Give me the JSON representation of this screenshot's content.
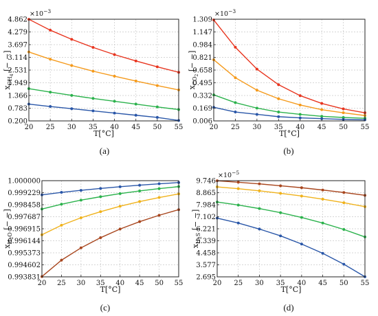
{
  "chart_data": [
    {
      "type": "line",
      "caption": "(a)",
      "xlabel": "T[°C]",
      "ylabel": "x_CH4 [− −]",
      "ylabel_main": "x",
      "ylabel_sub": "CH",
      "ylabel_subsub": "4",
      "ylabel_tail": "[− −]",
      "exponent_base": "×10",
      "exponent_power": "−3",
      "xlim": [
        20,
        55
      ],
      "ylim": [
        0.2,
        4.862
      ],
      "xticks": [
        "20",
        "25",
        "30",
        "35",
        "40",
        "45",
        "50",
        "55"
      ],
      "yticks": [
        "0.200",
        "0.783",
        "1.366",
        "1.949",
        "2.531",
        "3.114",
        "3.697",
        "4.279",
        "4.862"
      ],
      "x": [
        20,
        25,
        30,
        35,
        40,
        45,
        50,
        55
      ],
      "series": [
        {
          "color": "#e8351f",
          "values": [
            4.86,
            4.36,
            3.94,
            3.57,
            3.24,
            2.95,
            2.68,
            2.43
          ]
        },
        {
          "color": "#f59a1b",
          "values": [
            3.36,
            3.03,
            2.74,
            2.48,
            2.25,
            2.03,
            1.82,
            1.62
          ]
        },
        {
          "color": "#2bb24c",
          "values": [
            1.68,
            1.52,
            1.37,
            1.23,
            1.1,
            0.97,
            0.84,
            0.72
          ]
        },
        {
          "color": "#2956a8",
          "values": [
            0.97,
            0.86,
            0.76,
            0.66,
            0.56,
            0.46,
            0.36,
            0.22
          ]
        }
      ]
    },
    {
      "type": "line",
      "caption": "(b)",
      "xlabel": "T[°C]",
      "ylabel": "x_CO2 [− −]",
      "ylabel_main": "x",
      "ylabel_sub": "CO",
      "ylabel_subsub": "2",
      "ylabel_tail": "[− −]",
      "exponent_base": "×10",
      "exponent_power": "−3",
      "xlim": [
        20,
        55
      ],
      "ylim": [
        0.006,
        1.309
      ],
      "xticks": [
        "20",
        "25",
        "30",
        "35",
        "40",
        "45",
        "50",
        "55"
      ],
      "yticks": [
        "0.006",
        "0.169",
        "0.332",
        "0.495",
        "0.658",
        "0.821",
        "0.984",
        "1.147",
        "1.309"
      ],
      "x": [
        20,
        25,
        30,
        35,
        40,
        45,
        50,
        55
      ],
      "series": [
        {
          "color": "#e8351f",
          "values": [
            1.3,
            0.95,
            0.67,
            0.47,
            0.33,
            0.23,
            0.16,
            0.11
          ]
        },
        {
          "color": "#f59a1b",
          "values": [
            0.79,
            0.56,
            0.4,
            0.29,
            0.21,
            0.15,
            0.11,
            0.075
          ]
        },
        {
          "color": "#2bb24c",
          "values": [
            0.34,
            0.24,
            0.17,
            0.12,
            0.09,
            0.065,
            0.05,
            0.04
          ]
        },
        {
          "color": "#2956a8",
          "values": [
            0.18,
            0.12,
            0.09,
            0.06,
            0.045,
            0.035,
            0.025,
            0.02
          ]
        }
      ]
    },
    {
      "type": "line",
      "caption": "(c)",
      "xlabel": "T[°C]",
      "ylabel": "x_H2O [− −]",
      "ylabel_main": "x",
      "ylabel_sub": "H",
      "ylabel_subsub": "2",
      "ylabel_sub2": "O",
      "ylabel_tail": "[− −]",
      "xlim": [
        20,
        55
      ],
      "ylim": [
        0.993831,
        1.0
      ],
      "xticks": [
        "20",
        "25",
        "30",
        "35",
        "40",
        "45",
        "50",
        "55"
      ],
      "yticks": [
        "0.993831",
        "0.994602",
        "0.995373",
        "0.996144",
        "0.996915",
        "0.997687",
        "0.998458",
        "0.999229",
        "1.000000"
      ],
      "x": [
        20,
        25,
        30,
        35,
        40,
        45,
        50,
        55
      ],
      "series": [
        {
          "color": "#2956a8",
          "values": [
            0.99909,
            0.99925,
            0.99938,
            0.9995,
            0.99961,
            0.99971,
            0.9998,
            0.99988
          ]
        },
        {
          "color": "#2bb24c",
          "values": [
            0.99818,
            0.99849,
            0.99875,
            0.99897,
            0.99917,
            0.99934,
            0.99949,
            0.99962
          ]
        },
        {
          "color": "#f0b21b",
          "values": [
            0.99653,
            0.99714,
            0.99762,
            0.99801,
            0.99836,
            0.99866,
            0.99892,
            0.99915
          ]
        },
        {
          "color": "#a8461e",
          "values": [
            0.99385,
            0.9949,
            0.99569,
            0.99634,
            0.9969,
            0.99737,
            0.99778,
            0.99814
          ]
        }
      ]
    },
    {
      "type": "line",
      "caption": "(d)",
      "xlabel": "T[°C]",
      "ylabel": "x_H2S [− −]",
      "ylabel_main": "x",
      "ylabel_sub": "H",
      "ylabel_subsub": "2",
      "ylabel_sub2": "S",
      "ylabel_tail": "[− −]",
      "exponent_base": "×10",
      "exponent_power": "−5",
      "xlim": [
        20,
        55
      ],
      "ylim": [
        2.695,
        9.746
      ],
      "xticks": [
        "20",
        "25",
        "30",
        "35",
        "40",
        "45",
        "50",
        "55"
      ],
      "yticks": [
        "2.695",
        "3.577",
        "4.458",
        "5.339",
        "6.221",
        "7.102",
        "7.984",
        "8.865",
        "9.746"
      ],
      "x": [
        20,
        25,
        30,
        35,
        40,
        45,
        50,
        55
      ],
      "series": [
        {
          "color": "#a8461e",
          "values": [
            9.74,
            9.63,
            9.51,
            9.37,
            9.23,
            9.06,
            8.88,
            8.67
          ]
        },
        {
          "color": "#f0b21b",
          "values": [
            9.29,
            9.16,
            9.0,
            8.82,
            8.62,
            8.39,
            8.13,
            7.84
          ]
        },
        {
          "color": "#2bb24c",
          "values": [
            8.18,
            7.96,
            7.7,
            7.4,
            7.05,
            6.64,
            6.17,
            5.62
          ]
        },
        {
          "color": "#2956a8",
          "values": [
            7.0,
            6.64,
            6.2,
            5.7,
            5.1,
            4.42,
            3.62,
            2.7
          ]
        }
      ]
    }
  ]
}
